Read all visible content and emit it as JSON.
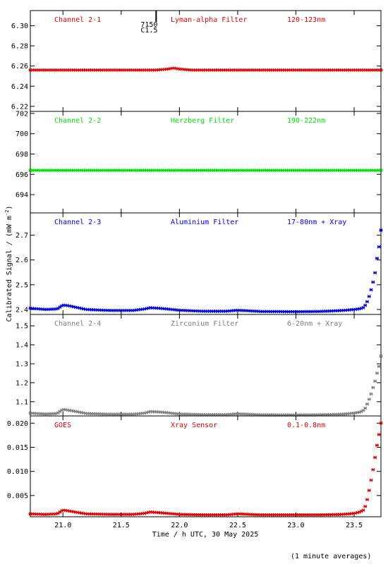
{
  "chart_data": {
    "type": "scatter",
    "ylabel": "Calibrated Signal / (mW m",
    "ylabel_sup": "-2",
    "ylabel_close": ")",
    "xlabel": "Time / h UTC, 30 May 2025",
    "note": "(1 minute averages)",
    "xlim": [
      20.72,
      23.73
    ],
    "x_ticks": [
      "21.0",
      "21.5",
      "22.0",
      "22.5",
      "23.0",
      "23.5"
    ],
    "x_tick_values": [
      21.0,
      21.5,
      22.0,
      22.5,
      23.0,
      23.5
    ],
    "marker_annotation": {
      "x": 21.8,
      "label1": "7150",
      "label2": "C1.5"
    },
    "panels": [
      {
        "channel": "Channel 2-1",
        "filter": "Lyman-alpha Filter",
        "band": "120-123nm",
        "color": "#e00000",
        "ylim": [
          6.215,
          6.315
        ],
        "y_ticks": [
          "6.22",
          "6.24",
          "6.26",
          "6.28",
          "6.30"
        ],
        "y_tick_values": [
          6.22,
          6.24,
          6.26,
          6.28,
          6.3
        ],
        "series": {
          "x": [
            20.72,
            21.5,
            21.8,
            21.9,
            21.95,
            22.0,
            22.1,
            22.5,
            23.0,
            23.5,
            23.73
          ],
          "y": [
            6.256,
            6.256,
            6.256,
            6.257,
            6.258,
            6.257,
            6.256,
            6.256,
            6.256,
            6.256,
            6.256
          ]
        }
      },
      {
        "channel": "Channel 2-2",
        "filter": "Herzberg Filter",
        "band": "190-222nm",
        "color": "#00e000",
        "ylim": [
          692.2,
          702.2
        ],
        "y_ticks": [
          "694",
          "696",
          "698",
          "700",
          "702"
        ],
        "y_tick_values": [
          694,
          696,
          698,
          700,
          702
        ],
        "series": {
          "x": [
            20.72,
            21.5,
            22.0,
            22.5,
            23.0,
            23.5,
            23.73
          ],
          "y": [
            696.4,
            696.4,
            696.4,
            696.4,
            696.4,
            696.4,
            696.4
          ]
        }
      },
      {
        "channel": "Channel 2-3",
        "filter": "Aluminium Filter",
        "band": "17-80nm + Xray",
        "color": "#0000e0",
        "ylim": [
          2.38,
          2.79
        ],
        "y_ticks": [
          "2.4",
          "2.5",
          "2.6",
          "2.7"
        ],
        "y_tick_values": [
          2.4,
          2.5,
          2.6,
          2.7
        ],
        "series": {
          "x": [
            20.72,
            20.85,
            20.95,
            21.0,
            21.05,
            21.1,
            21.2,
            21.4,
            21.6,
            21.7,
            21.75,
            21.85,
            22.0,
            22.2,
            22.4,
            22.5,
            22.7,
            23.0,
            23.2,
            23.4,
            23.5,
            23.55,
            23.58,
            23.6,
            23.62,
            23.64,
            23.66,
            23.68,
            23.7,
            23.72,
            23.73
          ],
          "y": [
            2.405,
            2.4,
            2.402,
            2.418,
            2.415,
            2.41,
            2.4,
            2.396,
            2.396,
            2.402,
            2.407,
            2.404,
            2.397,
            2.393,
            2.393,
            2.397,
            2.392,
            2.391,
            2.392,
            2.396,
            2.4,
            2.403,
            2.408,
            2.42,
            2.44,
            2.47,
            2.505,
            2.55,
            2.62,
            2.67,
            2.72
          ]
        }
      },
      {
        "channel": "Channel 2-4",
        "filter": "Zirconium Filter",
        "band": "6-20nm + Xray",
        "color": "#808080",
        "ylim": [
          1.025,
          1.56
        ],
        "y_ticks": [
          "1.1",
          "1.2",
          "1.3",
          "1.4",
          "1.5"
        ],
        "y_tick_values": [
          1.1,
          1.2,
          1.3,
          1.4,
          1.5
        ],
        "series": {
          "x": [
            20.72,
            20.85,
            20.95,
            21.0,
            21.05,
            21.1,
            21.2,
            21.4,
            21.6,
            21.7,
            21.75,
            21.85,
            22.0,
            22.2,
            22.4,
            22.5,
            22.7,
            23.0,
            23.2,
            23.4,
            23.5,
            23.55,
            23.58,
            23.6,
            23.62,
            23.64,
            23.66,
            23.68,
            23.7,
            23.72,
            23.73
          ],
          "y": [
            1.04,
            1.035,
            1.038,
            1.06,
            1.055,
            1.05,
            1.038,
            1.034,
            1.034,
            1.04,
            1.048,
            1.045,
            1.035,
            1.032,
            1.032,
            1.036,
            1.031,
            1.03,
            1.031,
            1.034,
            1.04,
            1.045,
            1.055,
            1.07,
            1.1,
            1.13,
            1.17,
            1.21,
            1.26,
            1.3,
            1.34
          ]
        }
      },
      {
        "channel": "GOES",
        "filter": "Xray Sensor",
        "band": "0.1-0.8nm",
        "color": "#e00000",
        "ylim": [
          0.0006,
          0.0215
        ],
        "y_ticks": [
          "0.005",
          "0.010",
          "0.015",
          "0.020"
        ],
        "y_tick_values": [
          0.005,
          0.01,
          0.015,
          0.02
        ],
        "series": {
          "x": [
            20.72,
            20.85,
            20.95,
            21.0,
            21.05,
            21.1,
            21.2,
            21.4,
            21.6,
            21.7,
            21.75,
            21.85,
            22.0,
            22.2,
            22.4,
            22.5,
            22.7,
            23.0,
            23.2,
            23.4,
            23.5,
            23.55,
            23.58,
            23.6,
            23.62,
            23.64,
            23.66,
            23.68,
            23.7,
            23.72,
            23.73
          ],
          "y": [
            0.0012,
            0.0011,
            0.0012,
            0.002,
            0.0018,
            0.0016,
            0.0012,
            0.0011,
            0.0011,
            0.0013,
            0.0016,
            0.0014,
            0.0011,
            0.001,
            0.001,
            0.0012,
            0.001,
            0.001,
            0.001,
            0.0011,
            0.0013,
            0.0016,
            0.002,
            0.003,
            0.005,
            0.0075,
            0.01,
            0.013,
            0.016,
            0.0185,
            0.02
          ]
        }
      }
    ]
  }
}
